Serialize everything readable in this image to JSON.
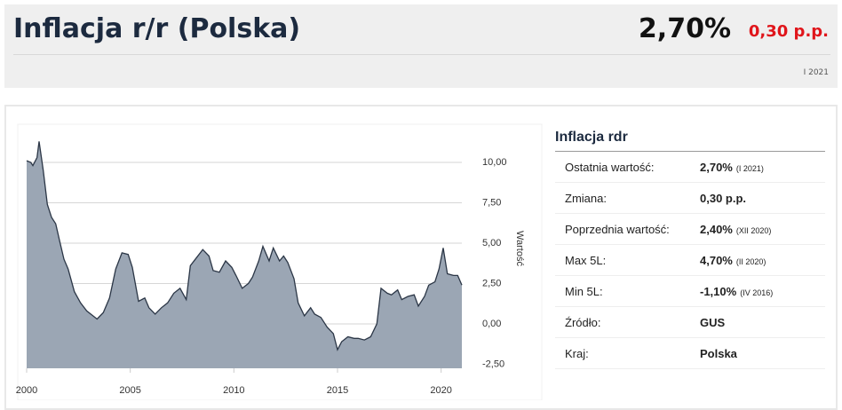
{
  "header": {
    "title": "Inflacja r/r (Polska)",
    "value": "2,70%",
    "change": "0,30 p.p.",
    "date": "I 2021"
  },
  "chart_data": {
    "type": "area",
    "y_label": "Wartość",
    "color": "#9ba6b4",
    "line_color": "#2b3646",
    "grid": true,
    "x": [
      2000.0,
      2000.2,
      2000.3,
      2000.5,
      2000.6,
      2000.8,
      2001.0,
      2001.2,
      2001.4,
      2001.6,
      2001.8,
      2002.0,
      2002.3,
      2002.6,
      2002.9,
      2003.2,
      2003.4,
      2003.7,
      2004.0,
      2004.3,
      2004.6,
      2004.9,
      2005.1,
      2005.4,
      2005.7,
      2005.9,
      2006.2,
      2006.5,
      2006.8,
      2007.1,
      2007.4,
      2007.7,
      2007.9,
      2008.2,
      2008.5,
      2008.8,
      2009.0,
      2009.3,
      2009.6,
      2009.9,
      2010.1,
      2010.4,
      2010.7,
      2010.9,
      2011.2,
      2011.4,
      2011.7,
      2011.9,
      2012.2,
      2012.4,
      2012.6,
      2012.9,
      2013.1,
      2013.4,
      2013.7,
      2013.9,
      2014.2,
      2014.5,
      2014.8,
      2015.0,
      2015.2,
      2015.5,
      2015.8,
      2016.0,
      2016.3,
      2016.6,
      2016.9,
      2017.1,
      2017.4,
      2017.6,
      2017.9,
      2018.1,
      2018.4,
      2018.7,
      2018.9,
      2019.2,
      2019.4,
      2019.7,
      2019.9,
      2020.1,
      2020.3,
      2020.6,
      2020.8,
      2021.0
    ],
    "values": [
      10.1,
      10.0,
      9.8,
      10.3,
      11.3,
      9.5,
      7.4,
      6.6,
      6.2,
      5.1,
      4.0,
      3.4,
      2.0,
      1.3,
      0.8,
      0.5,
      0.3,
      0.7,
      1.6,
      3.4,
      4.4,
      4.3,
      3.5,
      1.4,
      1.6,
      1.0,
      0.6,
      1.0,
      1.3,
      1.9,
      2.2,
      1.5,
      3.6,
      4.1,
      4.6,
      4.2,
      3.3,
      3.2,
      3.9,
      3.5,
      3.0,
      2.2,
      2.5,
      2.9,
      3.9,
      4.8,
      3.9,
      4.7,
      3.9,
      4.2,
      3.8,
      2.8,
      1.3,
      0.5,
      1.0,
      0.6,
      0.4,
      -0.2,
      -0.6,
      -1.6,
      -1.1,
      -0.8,
      -0.9,
      -0.9,
      -1.0,
      -0.8,
      0.0,
      2.2,
      1.9,
      1.8,
      2.1,
      1.5,
      1.7,
      1.8,
      1.1,
      1.7,
      2.4,
      2.6,
      3.4,
      4.7,
      3.1,
      3.0,
      3.0,
      2.4
    ],
    "xlim": [
      2000,
      2021
    ],
    "xticks": [
      2000,
      2005,
      2010,
      2015,
      2020
    ],
    "ylim": [
      -2.75,
      12.25
    ],
    "yticks": [
      {
        "value": -2.5,
        "label": "-2,50"
      },
      {
        "value": 0,
        "label": "0,00"
      },
      {
        "value": 2.5,
        "label": "2,50"
      },
      {
        "value": 5,
        "label": "5,00"
      },
      {
        "value": 7.5,
        "label": "7,50"
      },
      {
        "value": 10,
        "label": "10,00"
      }
    ]
  },
  "table": {
    "title": "Inflacja rdr",
    "rows": [
      {
        "label": "Ostatnia wartość:",
        "value": "2,70%",
        "note": "(I 2021)"
      },
      {
        "label": "Zmiana:",
        "value": "0,30 p.p."
      },
      {
        "label": "Poprzednia wartość:",
        "value": "2,40%",
        "note": "(XII 2020)"
      },
      {
        "label": "Max 5L:",
        "value": "4,70%",
        "note": "(II 2020)"
      },
      {
        "label": "Min 5L:",
        "value": "-1,10%",
        "note": "(IV 2016)"
      },
      {
        "label": "Źródło:",
        "value": "GUS"
      },
      {
        "label": "Kraj:",
        "value": "Polska"
      }
    ]
  }
}
